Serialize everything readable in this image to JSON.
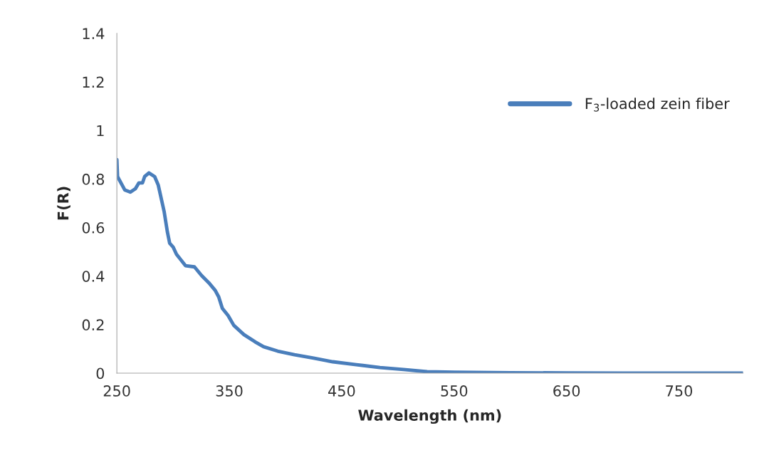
{
  "chart_data": {
    "type": "line",
    "xlabel": "Wavelength (nm)",
    "ylabel": "F(R)",
    "xlim": [
      250,
      807
    ],
    "xticks": [
      250,
      350,
      450,
      550,
      650,
      750
    ],
    "ylim": [
      0,
      1.4
    ],
    "yticks": [
      0,
      0.2,
      0.4,
      0.6,
      0.8,
      1,
      1.2,
      1.4
    ],
    "grid": false,
    "legend": "top right",
    "marker": "none",
    "line_style": "solid",
    "series": [
      {
        "name": "F$_{3}$-loaded zein fiber",
        "color": "#4a7ebb",
        "x": [
          250,
          250.6,
          257,
          262,
          266.5,
          269.6,
          272.8,
          274.7,
          278.5,
          283.6,
          286.8,
          292,
          295,
          297,
          300,
          303,
          311,
          319,
          325.4,
          331.7,
          337.5,
          340.6,
          343.8,
          348.9,
          354,
          363,
          373,
          380.5,
          393,
          408,
          425,
          442,
          463,
          484,
          505,
          526,
          550,
          600,
          650,
          700,
          750,
          807
        ],
        "values": [
          0.88,
          0.81,
          0.755,
          0.746,
          0.76,
          0.784,
          0.784,
          0.81,
          0.825,
          0.81,
          0.775,
          0.667,
          0.58,
          0.535,
          0.52,
          0.49,
          0.443,
          0.438,
          0.402,
          0.373,
          0.341,
          0.314,
          0.267,
          0.238,
          0.197,
          0.159,
          0.129,
          0.109,
          0.091,
          0.076,
          0.062,
          0.047,
          0.035,
          0.023,
          0.015,
          0.006,
          0.004,
          0.002,
          0.001,
          0,
          0,
          0
        ]
      }
    ]
  }
}
